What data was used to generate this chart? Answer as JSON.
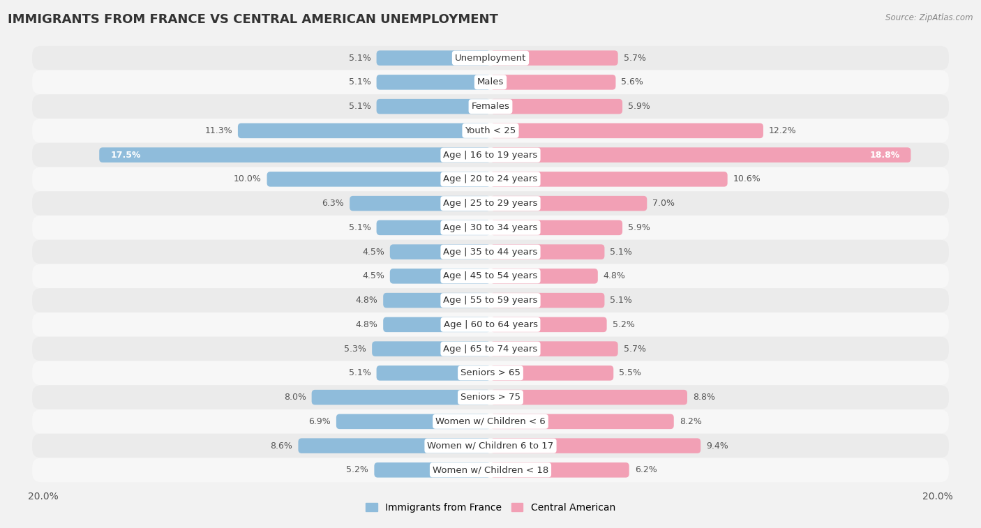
{
  "title": "IMMIGRANTS FROM FRANCE VS CENTRAL AMERICAN UNEMPLOYMENT",
  "source": "Source: ZipAtlas.com",
  "categories": [
    "Unemployment",
    "Males",
    "Females",
    "Youth < 25",
    "Age | 16 to 19 years",
    "Age | 20 to 24 years",
    "Age | 25 to 29 years",
    "Age | 30 to 34 years",
    "Age | 35 to 44 years",
    "Age | 45 to 54 years",
    "Age | 55 to 59 years",
    "Age | 60 to 64 years",
    "Age | 65 to 74 years",
    "Seniors > 65",
    "Seniors > 75",
    "Women w/ Children < 6",
    "Women w/ Children 6 to 17",
    "Women w/ Children < 18"
  ],
  "france_values": [
    5.1,
    5.1,
    5.1,
    11.3,
    17.5,
    10.0,
    6.3,
    5.1,
    4.5,
    4.5,
    4.8,
    4.8,
    5.3,
    5.1,
    8.0,
    6.9,
    8.6,
    5.2
  ],
  "central_values": [
    5.7,
    5.6,
    5.9,
    12.2,
    18.8,
    10.6,
    7.0,
    5.9,
    5.1,
    4.8,
    5.1,
    5.2,
    5.7,
    5.5,
    8.8,
    8.2,
    9.4,
    6.2
  ],
  "france_color": "#8FBCDB",
  "central_color": "#F2A0B5",
  "max_val": 20.0,
  "row_color_odd": "#ebebeb",
  "row_color_even": "#f7f7f7",
  "background_color": "#f2f2f2",
  "bar_height": 0.62,
  "title_fontsize": 13,
  "label_fontsize": 9.5,
  "value_fontsize": 9,
  "legend_fontsize": 10
}
